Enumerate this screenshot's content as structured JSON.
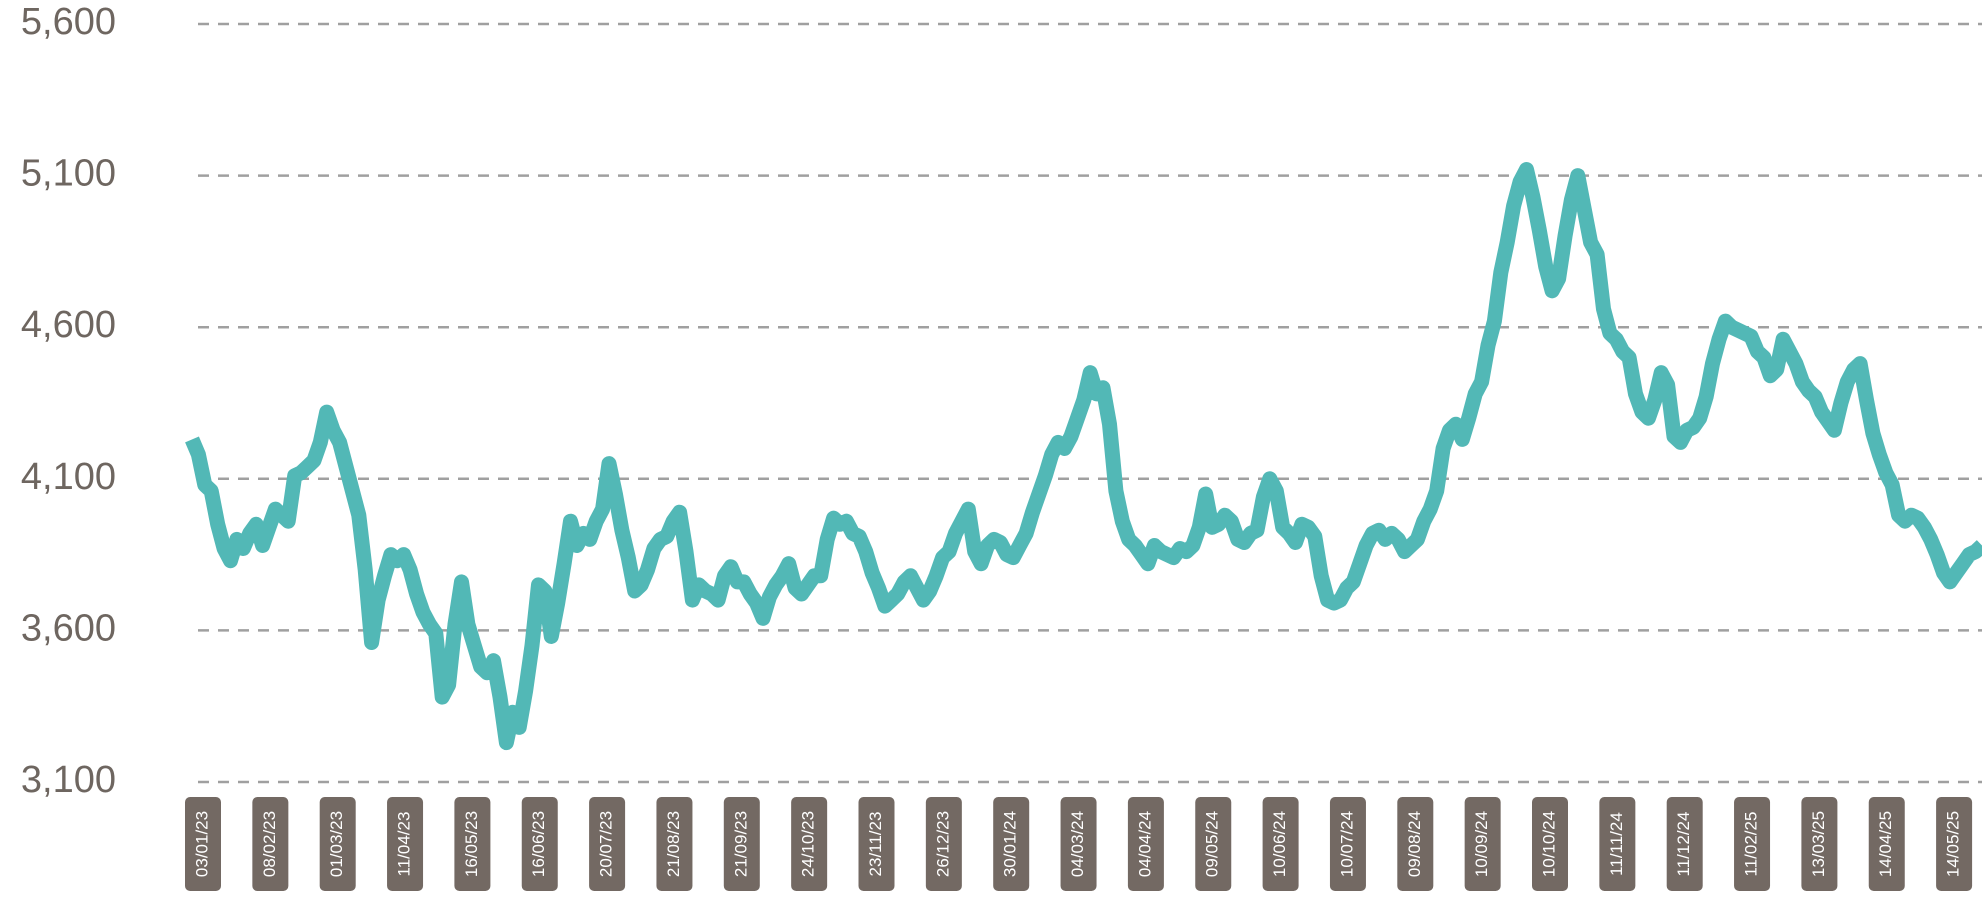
{
  "chart_data": {
    "type": "line",
    "title": "",
    "xlabel": "",
    "ylabel": "",
    "ylim": [
      3100,
      5600
    ],
    "yticks": [
      "5,600",
      "5,100",
      "4,600",
      "4,100",
      "3,600",
      "3,100"
    ],
    "ytick_values": [
      5600,
      5100,
      4600,
      4100,
      3600,
      3100
    ],
    "grid": "horizontal dashed",
    "line_color": "#52b8b6",
    "grid_color": "#a0a0a0",
    "tick_label_color": "#6e6660",
    "date_badge_color": "#736963",
    "x_tick_labels": [
      "03/01/23",
      "08/02/23",
      "01/03/23",
      "11/04/23",
      "16/05/23",
      "16/06/23",
      "20/07/23",
      "21/08/23",
      "21/09/23",
      "24/10/23",
      "23/11/23",
      "26/12/23",
      "30/01/24",
      "04/03/24",
      "04/04/24",
      "09/05/24",
      "10/06/24",
      "10/07/24",
      "09/08/24",
      "10/09/24",
      "10/10/24",
      "11/11/24",
      "11/12/24",
      "11/02/25",
      "13/03/25",
      "14/04/25",
      "14/05/25"
    ],
    "series": [
      {
        "values": [
          4230,
          4180,
          4080,
          4060,
          3950,
          3870,
          3830,
          3900,
          3870,
          3920,
          3950,
          3880,
          3940,
          4000,
          3980,
          3960,
          4110,
          4120,
          4140,
          4160,
          4220,
          4320,
          4260,
          4220,
          4140,
          4060,
          3980,
          3800,
          3560,
          3700,
          3780,
          3850,
          3830,
          3850,
          3800,
          3720,
          3660,
          3620,
          3590,
          3380,
          3420,
          3620,
          3760,
          3620,
          3550,
          3480,
          3460,
          3500,
          3380,
          3230,
          3330,
          3280,
          3400,
          3550,
          3750,
          3730,
          3580,
          3690,
          3820,
          3960,
          3880,
          3920,
          3900,
          3960,
          4000,
          4150,
          4050,
          3930,
          3840,
          3730,
          3750,
          3800,
          3870,
          3900,
          3910,
          3960,
          3990,
          3860,
          3700,
          3750,
          3730,
          3720,
          3700,
          3780,
          3810,
          3760,
          3760,
          3720,
          3690,
          3640,
          3710,
          3750,
          3780,
          3820,
          3740,
          3720,
          3750,
          3780,
          3780,
          3900,
          3970,
          3950,
          3960,
          3920,
          3910,
          3860,
          3790,
          3740,
          3680,
          3700,
          3720,
          3760,
          3780,
          3740,
          3700,
          3730,
          3780,
          3840,
          3860,
          3920,
          3960,
          4000,
          3860,
          3820,
          3880,
          3900,
          3890,
          3850,
          3840,
          3880,
          3920,
          3990,
          4050,
          4110,
          4180,
          4220,
          4200,
          4240,
          4300,
          4360,
          4450,
          4380,
          4400,
          4280,
          4060,
          3960,
          3900,
          3880,
          3850,
          3820,
          3880,
          3860,
          3850,
          3840,
          3870,
          3860,
          3880,
          3940,
          4050,
          3940,
          3950,
          3980,
          3960,
          3900,
          3890,
          3920,
          3930,
          4040,
          4100,
          4060,
          3940,
          3920,
          3890,
          3950,
          3940,
          3910,
          3780,
          3700,
          3690,
          3700,
          3740,
          3760,
          3820,
          3880,
          3920,
          3930,
          3900,
          3920,
          3900,
          3860,
          3880,
          3900,
          3960,
          4000,
          4060,
          4200,
          4260,
          4280,
          4230,
          4300,
          4380,
          4420,
          4540,
          4620,
          4780,
          4880,
          5000,
          5080,
          5120,
          5030,
          4920,
          4800,
          4720,
          4760,
          4900,
          5020,
          5100,
          4990,
          4880,
          4840,
          4660,
          4580,
          4560,
          4520,
          4500,
          4380,
          4320,
          4300,
          4360,
          4450,
          4410,
          4240,
          4220,
          4260,
          4270,
          4300,
          4370,
          4480,
          4560,
          4620,
          4600,
          4590,
          4580,
          4570,
          4520,
          4500,
          4440,
          4460,
          4560,
          4520,
          4480,
          4420,
          4390,
          4370,
          4320,
          4290,
          4260,
          4350,
          4420,
          4460,
          4480,
          4360,
          4250,
          4180,
          4120,
          4080,
          3980,
          3960,
          3980,
          3970,
          3940,
          3900,
          3850,
          3790,
          3760,
          3790,
          3820,
          3850,
          3860,
          3880
        ]
      }
    ]
  }
}
